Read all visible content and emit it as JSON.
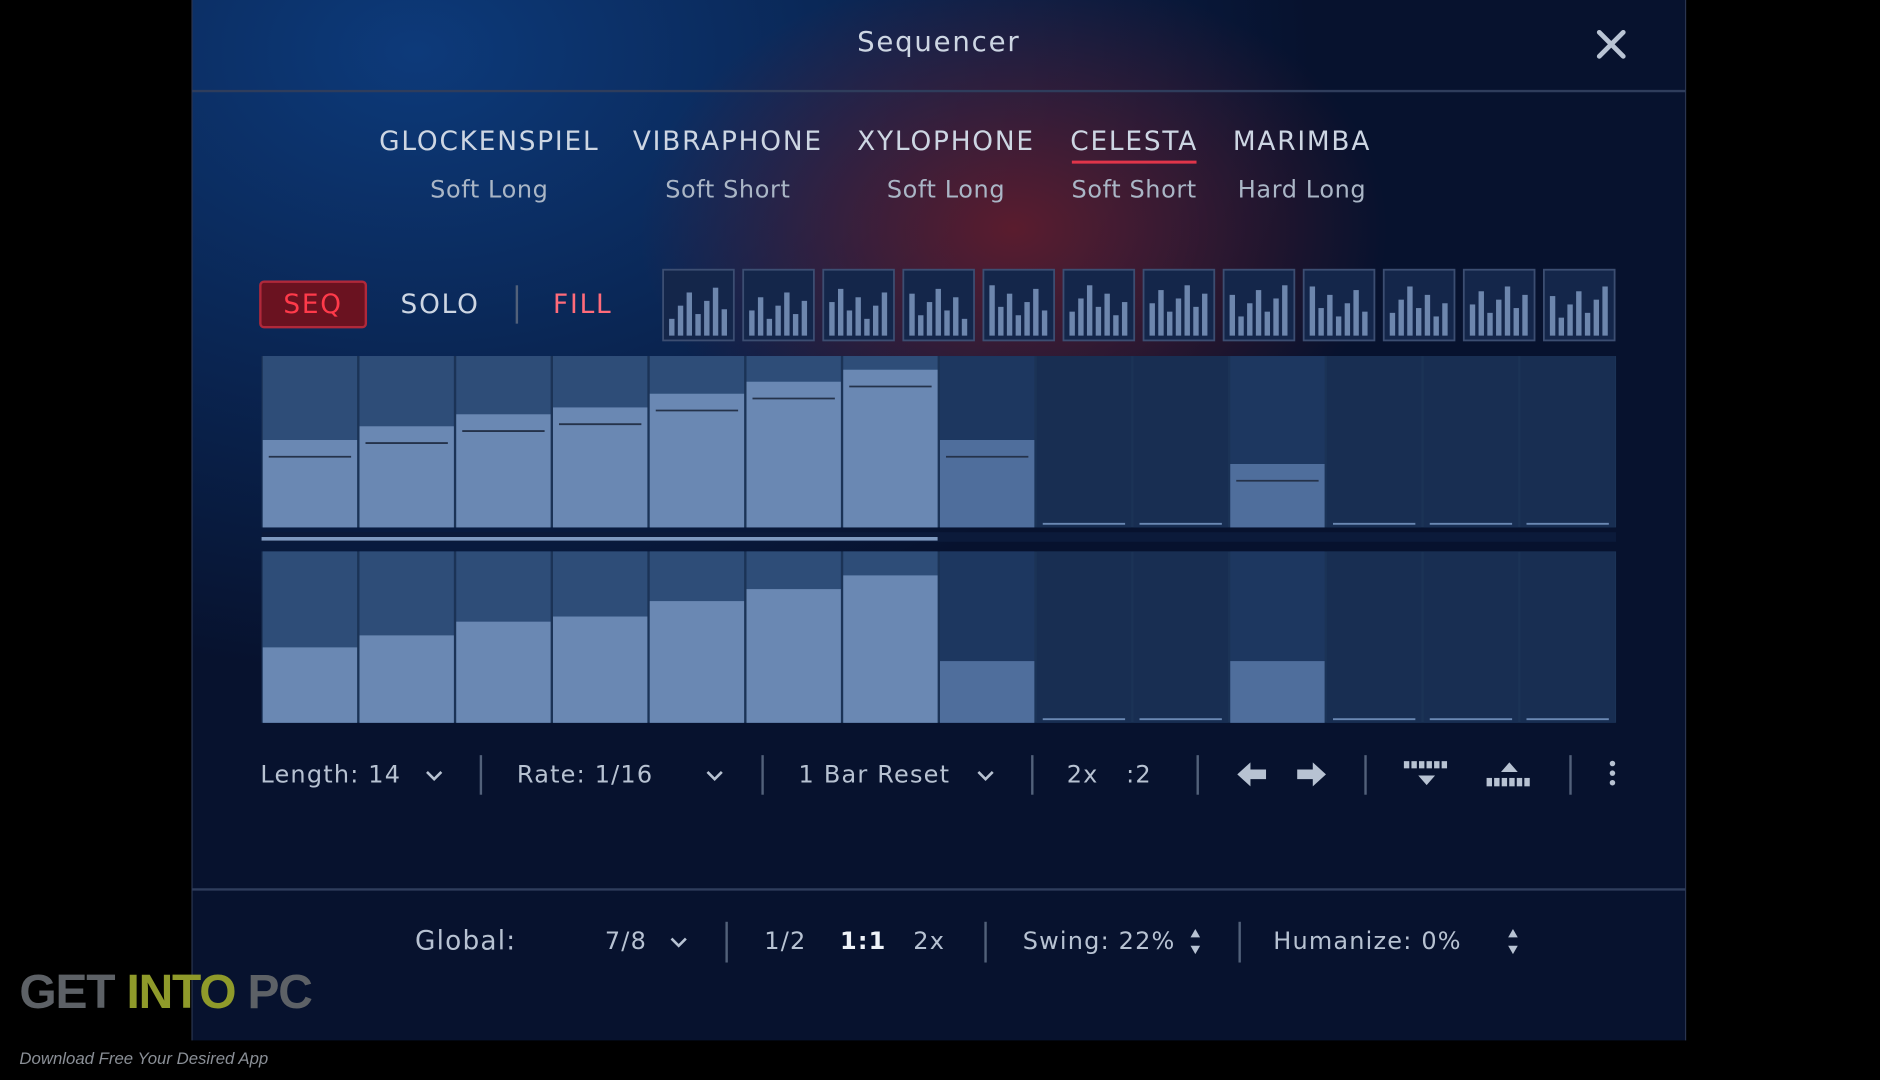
{
  "header": {
    "title": "Sequencer"
  },
  "instruments": [
    {
      "name": "GLOCKENSPIEL",
      "articulation": "Soft Long"
    },
    {
      "name": "VIBRAPHONE",
      "articulation": "Soft Short"
    },
    {
      "name": "XYLOPHONE",
      "articulation": "Soft Long"
    },
    {
      "name": "CELESTA",
      "articulation": "Soft Short"
    },
    {
      "name": "MARIMBA",
      "articulation": "Hard Long"
    }
  ],
  "selected_instrument": 3,
  "modes": [
    "SEQ",
    "SOLO",
    "FILL"
  ],
  "steps": {
    "range": [
      0,
      100
    ],
    "upper": [
      51,
      59,
      66,
      70,
      78,
      85,
      92,
      51,
      0,
      0,
      37,
      0,
      0,
      0
    ],
    "lower": [
      44,
      51,
      59,
      62,
      71,
      78,
      86,
      36,
      0,
      0,
      36,
      0,
      0,
      0
    ]
  },
  "controls": {
    "length": "Length: 14",
    "rate": "Rate: 1/16",
    "reset": "1 Bar Reset",
    "double": "2x",
    "half": ":2"
  },
  "global": {
    "label": "Global:",
    "meter": "7/8",
    "half": "1/2",
    "normal": "1:1",
    "double": "2x",
    "swing": "Swing: 22%",
    "humanize": "Humanize: 0%"
  },
  "watermark": {
    "get": "GET",
    "into": "INTO",
    "pc": "PC",
    "tagline": "Download Free Your Desired App"
  }
}
